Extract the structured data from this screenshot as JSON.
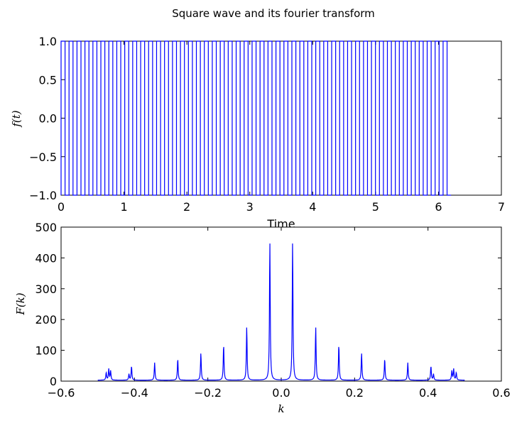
{
  "figure_title": "Square wave and its fourier transform",
  "colors": {
    "line": "#0000ff",
    "axes": "#000000",
    "background": "#ffffff"
  },
  "chart_data": [
    {
      "type": "line",
      "title": "",
      "xlabel": "Time",
      "ylabel": "f(t)",
      "xlim": [
        0,
        7
      ],
      "ylim": [
        -1.0,
        1.0
      ],
      "xticks": [
        "0",
        "1",
        "2",
        "3",
        "4",
        "5",
        "6",
        "7"
      ],
      "yticks": [
        "1.0",
        "0.5",
        "0.0",
        "−0.5",
        "−1.0"
      ],
      "grid": false,
      "series": [
        {
          "signal": "square wave",
          "amplitude_low": -1.0,
          "amplitude_high": 1.0,
          "t_start": 0.0,
          "t_end": 6.2,
          "cycles": 49,
          "duty": 0.5,
          "starts_high": true
        }
      ]
    },
    {
      "type": "line",
      "title": "",
      "xlabel": "k",
      "ylabel": "F(k)",
      "xlim": [
        -0.6,
        0.6
      ],
      "ylim": [
        0,
        500
      ],
      "xticks": [
        "−0.6",
        "−0.4",
        "−0.2",
        "0.0",
        "0.2",
        "0.4",
        "0.6"
      ],
      "yticks": [
        "500",
        "400",
        "300",
        "200",
        "100",
        "0"
      ],
      "grid": false,
      "k_range": [
        -0.5,
        0.5
      ],
      "peaks": [
        {
          "k": -0.031,
          "F": 452
        },
        {
          "k": 0.031,
          "F": 452
        },
        {
          "k": -0.094,
          "F": 174
        },
        {
          "k": 0.094,
          "F": 174
        },
        {
          "k": -0.157,
          "F": 116
        },
        {
          "k": 0.157,
          "F": 116
        },
        {
          "k": -0.219,
          "F": 88
        },
        {
          "k": 0.219,
          "F": 88
        },
        {
          "k": -0.282,
          "F": 70
        },
        {
          "k": 0.282,
          "F": 70
        },
        {
          "k": -0.345,
          "F": 57
        },
        {
          "k": 0.345,
          "F": 57
        },
        {
          "k": -0.408,
          "F": 46
        },
        {
          "k": 0.408,
          "F": 46
        },
        {
          "k": -0.47,
          "F": 36
        },
        {
          "k": 0.47,
          "F": 36
        }
      ],
      "side_peaks": [
        {
          "k": -0.415,
          "F": 20
        },
        {
          "k": 0.415,
          "F": 20
        },
        {
          "k": -0.465,
          "F": 30
        },
        {
          "k": 0.465,
          "F": 30
        },
        {
          "k": -0.477,
          "F": 25
        },
        {
          "k": 0.477,
          "F": 25
        }
      ],
      "baseline": 3
    }
  ]
}
